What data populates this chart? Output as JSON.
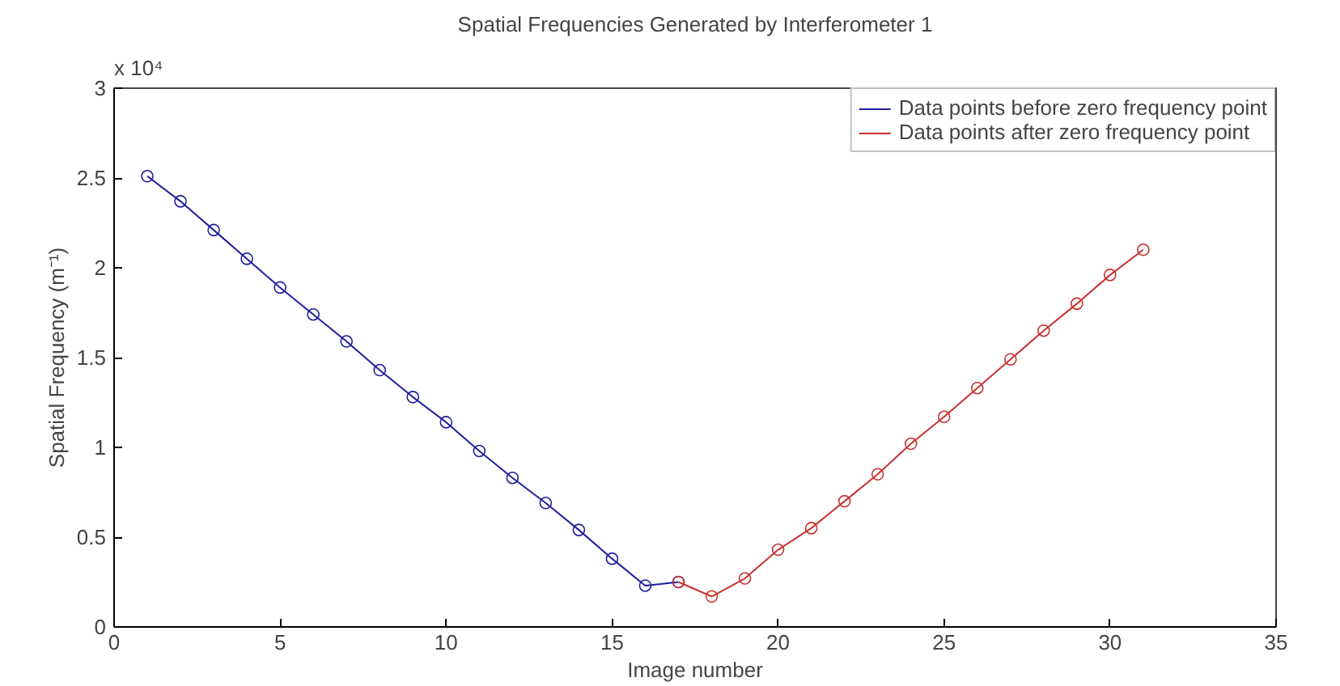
{
  "chart_data": {
    "type": "line",
    "title": "Spatial Frequencies Generated by Interferometer 1",
    "xlabel": "Image number",
    "ylabel": "Spatial Frequency (m⁻¹)",
    "annotations": [
      "x 10⁴"
    ],
    "series": [
      {
        "name": "Data points before zero frequency point",
        "color": "#1f1f9e",
        "x": [
          1,
          2,
          3,
          4,
          5,
          6,
          7,
          8,
          9,
          10,
          11,
          12,
          13,
          14,
          15,
          16,
          17
        ],
        "values": [
          2.51,
          2.37,
          2.21,
          2.05,
          1.89,
          1.74,
          1.59,
          1.43,
          1.28,
          1.14,
          0.98,
          0.83,
          0.69,
          0.54,
          0.38,
          0.23,
          0.25
        ]
      },
      {
        "name": "Data points after zero frequency point",
        "color": "#c83232",
        "x": [
          17,
          18,
          19,
          20,
          21,
          22,
          23,
          24,
          25,
          26,
          27,
          28,
          29,
          30,
          31
        ],
        "values": [
          0.25,
          0.17,
          0.27,
          0.43,
          0.55,
          0.7,
          0.85,
          1.02,
          1.17,
          1.33,
          1.49,
          1.65,
          1.8,
          1.96,
          2.1
        ]
      }
    ],
    "xlim": [
      0,
      35
    ],
    "xticks": [
      0,
      5,
      10,
      15,
      20,
      25,
      30,
      35
    ],
    "ylim": [
      0,
      3
    ],
    "yticks": [
      0,
      0.5,
      1,
      1.5,
      2,
      2.5,
      3
    ],
    "grid": false,
    "legend": "top right",
    "marker": "circle",
    "line_style": "solid"
  }
}
